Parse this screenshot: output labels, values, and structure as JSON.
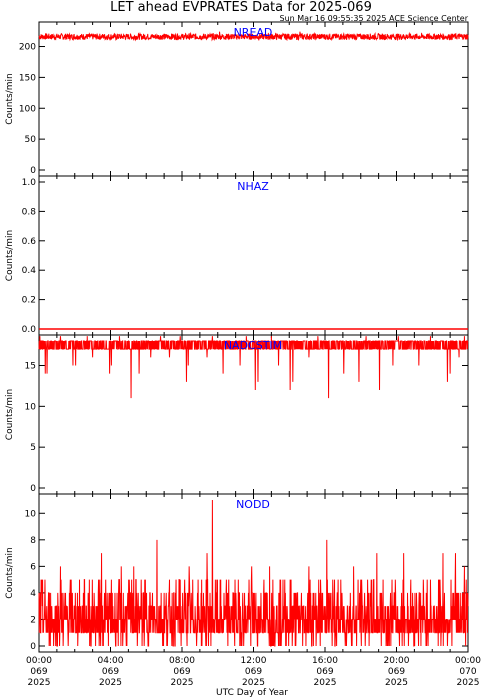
{
  "header": {
    "title": "LET ahead EVPRATES Data for 2025-069",
    "timestamp": "Sun Mar 16 09:55:35 2025 ACE Science Center"
  },
  "xaxis": {
    "label": "UTC Day of Year",
    "ticks": [
      {
        "time": "00:00",
        "doy": "069",
        "year": "2025"
      },
      {
        "time": "04:00",
        "doy": "069",
        "year": "2025"
      },
      {
        "time": "08:00",
        "doy": "069",
        "year": "2025"
      },
      {
        "time": "12:00",
        "doy": "069",
        "year": "2025"
      },
      {
        "time": "16:00",
        "doy": "069",
        "year": "2025"
      },
      {
        "time": "20:00",
        "doy": "069",
        "year": "2025"
      },
      {
        "time": "00:00",
        "doy": "070",
        "year": "2025"
      }
    ]
  },
  "colors": {
    "series": "#ff0000",
    "panel_label": "#0000ff",
    "axis": "#000000"
  },
  "chart_data": [
    {
      "type": "line",
      "name": "NREAD",
      "ylabel": "Counts/min",
      "ylim": [
        0,
        230
      ],
      "yticks": [
        0,
        50,
        100,
        150,
        200
      ],
      "ytick_labels": [
        "0",
        "50",
        "100",
        "150",
        "200"
      ],
      "xlim_hours": [
        0,
        24
      ],
      "profile": {
        "kind": "noisy",
        "base": 216,
        "noise": 5,
        "spikes_low": [
          [
            9.8,
            211
          ],
          [
            5.3,
            210
          ],
          [
            17.2,
            211
          ]
        ],
        "spikes_high": [
          [
            10.1,
            224
          ],
          [
            14.6,
            224
          ]
        ]
      }
    },
    {
      "type": "line",
      "name": "NHAZ",
      "ylabel": "Counts/min",
      "ylim": [
        0,
        1
      ],
      "yticks": [
        0,
        0.2,
        0.4,
        0.6,
        0.8,
        1.0
      ],
      "ytick_labels": [
        "0.0",
        "0.2",
        "0.4",
        "0.6",
        "0.8",
        "1.0"
      ],
      "xlim_hours": [
        0,
        24
      ],
      "profile": {
        "kind": "constant",
        "value": 0
      }
    },
    {
      "type": "line",
      "name": "NADCSTIM",
      "ylabel": "Counts/min",
      "ylim": [
        0,
        18
      ],
      "yticks": [
        0,
        5,
        10,
        15
      ],
      "ytick_labels": [
        "0",
        "5",
        "10",
        "15"
      ],
      "xlim_hours": [
        0,
        24
      ],
      "profile": {
        "kind": "band",
        "low": 17,
        "high": 18,
        "dips": [
          [
            0.35,
            14
          ],
          [
            0.45,
            14
          ],
          [
            1.9,
            15
          ],
          [
            2.05,
            15
          ],
          [
            3.0,
            16
          ],
          [
            3.95,
            14
          ],
          [
            4.05,
            15
          ],
          [
            5.15,
            11
          ],
          [
            5.6,
            14
          ],
          [
            6.25,
            16
          ],
          [
            7.3,
            16
          ],
          [
            8.25,
            13
          ],
          [
            8.35,
            15
          ],
          [
            9.4,
            16
          ],
          [
            10.3,
            14
          ],
          [
            11.25,
            15
          ],
          [
            12.1,
            12
          ],
          [
            12.25,
            13
          ],
          [
            13.4,
            15
          ],
          [
            14.05,
            12
          ],
          [
            14.2,
            13
          ],
          [
            15.1,
            16
          ],
          [
            16.2,
            11
          ],
          [
            17.05,
            14
          ],
          [
            17.9,
            13
          ],
          [
            19.05,
            12
          ],
          [
            19.8,
            15
          ],
          [
            21.25,
            15
          ],
          [
            22.85,
            13
          ],
          [
            23.0,
            14
          ],
          [
            23.5,
            16
          ]
        ],
        "spikes_high": [
          [
            0.05,
            19
          ],
          [
            1.2,
            19
          ],
          [
            2.7,
            19
          ],
          [
            4.5,
            19
          ],
          [
            6.8,
            19
          ],
          [
            7.9,
            19
          ],
          [
            9.7,
            19
          ],
          [
            11.6,
            19
          ],
          [
            13.0,
            19
          ],
          [
            15.6,
            19
          ],
          [
            18.3,
            19
          ],
          [
            20.1,
            19
          ],
          [
            21.9,
            19
          ],
          [
            23.8,
            19
          ]
        ]
      }
    },
    {
      "type": "line",
      "name": "NODD",
      "ylabel": "Counts/min",
      "ylim": [
        0,
        11
      ],
      "yticks": [
        0,
        2,
        4,
        6,
        8,
        10
      ],
      "ytick_labels": [
        "0",
        "2",
        "4",
        "6",
        "8",
        "10"
      ],
      "xlim_hours": [
        0,
        24
      ],
      "profile": {
        "kind": "discrete",
        "mean": 2.4,
        "max_common": 5,
        "spikes_high": [
          [
            1.2,
            6
          ],
          [
            3.5,
            7
          ],
          [
            4.6,
            6
          ],
          [
            5.3,
            6
          ],
          [
            6.6,
            8
          ],
          [
            8.4,
            6
          ],
          [
            9.4,
            7
          ],
          [
            9.7,
            11
          ],
          [
            11.9,
            6
          ],
          [
            12.9,
            6
          ],
          [
            15.1,
            6
          ],
          [
            16.1,
            8
          ],
          [
            17.6,
            6
          ],
          [
            18.9,
            7
          ],
          [
            20.4,
            7
          ],
          [
            22.6,
            7
          ],
          [
            23.3,
            7
          ],
          [
            23.8,
            6
          ]
        ]
      }
    }
  ]
}
